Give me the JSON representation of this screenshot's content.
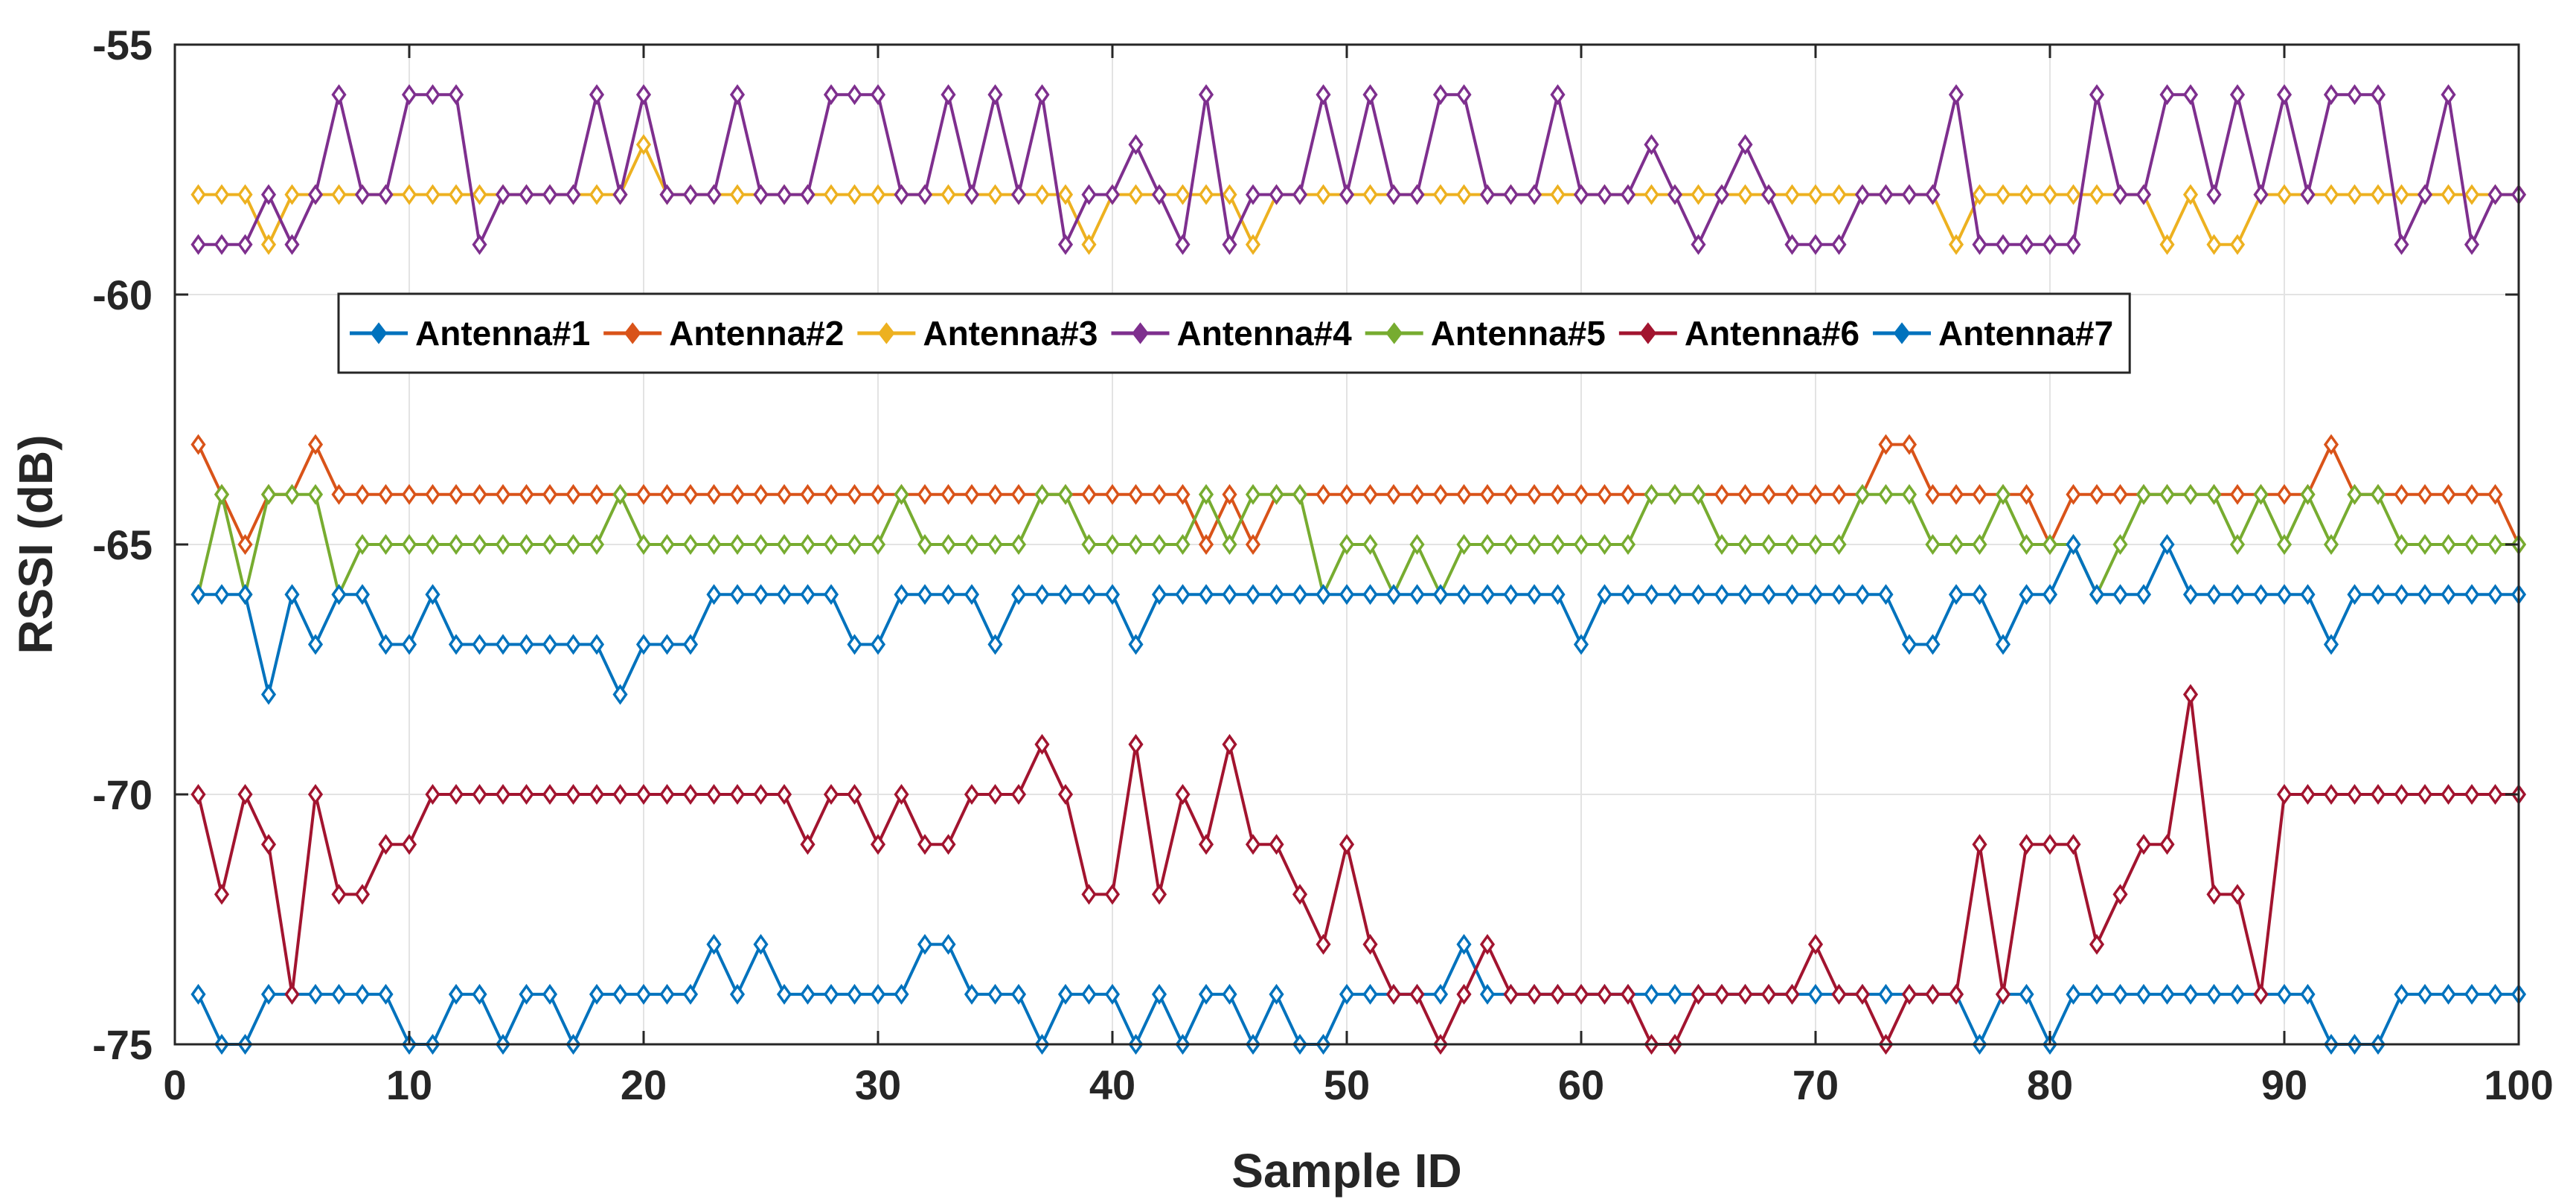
{
  "chart_data": {
    "type": "line",
    "title": "",
    "xlabel": "Sample ID",
    "ylabel": "RSSI (dB)",
    "xlim": [
      0,
      100
    ],
    "ylim": [
      -75,
      -55
    ],
    "x_ticks": [
      0,
      10,
      20,
      30,
      40,
      50,
      60,
      70,
      80,
      90,
      100
    ],
    "y_ticks": [
      -55,
      -60,
      -65,
      -70,
      -75
    ],
    "x_tick_labels": [
      "0",
      "10",
      "20",
      "30",
      "40",
      "50",
      "60",
      "70",
      "80",
      "90",
      "100"
    ],
    "y_tick_labels": [
      "-55",
      "-60",
      "-65",
      "-70",
      "-75"
    ],
    "grid": true,
    "legend_position": "upper-center, single row",
    "marker": "diamond",
    "x": [
      1,
      2,
      3,
      4,
      5,
      6,
      7,
      8,
      9,
      10,
      11,
      12,
      13,
      14,
      15,
      16,
      17,
      18,
      19,
      20,
      21,
      22,
      23,
      24,
      25,
      26,
      27,
      28,
      29,
      30,
      31,
      32,
      33,
      34,
      35,
      36,
      37,
      38,
      39,
      40,
      41,
      42,
      43,
      44,
      45,
      46,
      47,
      48,
      49,
      50,
      51,
      52,
      53,
      54,
      55,
      56,
      57,
      58,
      59,
      60,
      61,
      62,
      63,
      64,
      65,
      66,
      67,
      68,
      69,
      70,
      71,
      72,
      73,
      74,
      75,
      76,
      77,
      78,
      79,
      80,
      81,
      82,
      83,
      84,
      85,
      86,
      87,
      88,
      89,
      90,
      91,
      92,
      93,
      94,
      95,
      96,
      97,
      98,
      99,
      100
    ],
    "series": [
      {
        "name": "Antenna#1",
        "color": "#0072BD",
        "values": [
          -74,
          -75,
          -75,
          -74,
          -74,
          -74,
          -74,
          -74,
          -74,
          -75,
          -75,
          -74,
          -74,
          -75,
          -74,
          -74,
          -75,
          -74,
          -74,
          -74,
          -74,
          -74,
          -73,
          -74,
          -73,
          -74,
          -74,
          -74,
          -74,
          -74,
          -74,
          -73,
          -73,
          -74,
          -74,
          -74,
          -75,
          -74,
          -74,
          -74,
          -75,
          -74,
          -75,
          -74,
          -74,
          -75,
          -74,
          -75,
          -75,
          -74,
          -74,
          -74,
          -74,
          -74,
          -73,
          -74,
          -74,
          -74,
          -74,
          -74,
          -74,
          -74,
          -74,
          -74,
          -74,
          -74,
          -74,
          -74,
          -74,
          -74,
          -74,
          -74,
          -74,
          -74,
          -74,
          -74,
          -75,
          -74,
          -74,
          -75,
          -74,
          -74,
          -74,
          -74,
          -74,
          -74,
          -74,
          -74,
          -74,
          -74,
          -74,
          -75,
          -75,
          -75,
          -74,
          -74,
          -74,
          -74,
          -74,
          -74
        ]
      },
      {
        "name": "Antenna#2",
        "color": "#D95319",
        "values": [
          -63,
          -64,
          -65,
          -64,
          -64,
          -63,
          -64,
          -64,
          -64,
          -64,
          -64,
          -64,
          -64,
          -64,
          -64,
          -64,
          -64,
          -64,
          -64,
          -64,
          -64,
          -64,
          -64,
          -64,
          -64,
          -64,
          -64,
          -64,
          -64,
          -64,
          -64,
          -64,
          -64,
          -64,
          -64,
          -64,
          -64,
          -64,
          -64,
          -64,
          -64,
          -64,
          -64,
          -65,
          -64,
          -65,
          -64,
          -64,
          -64,
          -64,
          -64,
          -64,
          -64,
          -64,
          -64,
          -64,
          -64,
          -64,
          -64,
          -64,
          -64,
          -64,
          -64,
          -64,
          -64,
          -64,
          -64,
          -64,
          -64,
          -64,
          -64,
          -64,
          -63,
          -63,
          -64,
          -64,
          -64,
          -64,
          -64,
          -65,
          -64,
          -64,
          -64,
          -64,
          -64,
          -64,
          -64,
          -64,
          -64,
          -64,
          -64,
          -63,
          -64,
          -64,
          -64,
          -64,
          -64,
          -64,
          -64,
          -65
        ]
      },
      {
        "name": "Antenna#3",
        "color": "#EDB120",
        "values": [
          -58,
          -58,
          -58,
          -59,
          -58,
          -58,
          -58,
          -58,
          -58,
          -58,
          -58,
          -58,
          -58,
          -58,
          -58,
          -58,
          -58,
          -58,
          -58,
          -57,
          -58,
          -58,
          -58,
          -58,
          -58,
          -58,
          -58,
          -58,
          -58,
          -58,
          -58,
          -58,
          -58,
          -58,
          -58,
          -58,
          -58,
          -58,
          -59,
          -58,
          -58,
          -58,
          -58,
          -58,
          -58,
          -59,
          -58,
          -58,
          -58,
          -58,
          -58,
          -58,
          -58,
          -58,
          -58,
          -58,
          -58,
          -58,
          -58,
          -58,
          -58,
          -58,
          -58,
          -58,
          -58,
          -58,
          -58,
          -58,
          -58,
          -58,
          -58,
          -58,
          -58,
          -58,
          -58,
          -59,
          -58,
          -58,
          -58,
          -58,
          -58,
          -58,
          -58,
          -58,
          -59,
          -58,
          -59,
          -59,
          -58,
          -58,
          -58,
          -58,
          -58,
          -58,
          -58,
          -58,
          -58,
          -58,
          -58,
          -58
        ]
      },
      {
        "name": "Antenna#4",
        "color": "#7E2F8E",
        "values": [
          -59,
          -59,
          -59,
          -58,
          -59,
          -58,
          -56,
          -58,
          -58,
          -56,
          -56,
          -56,
          -59,
          -58,
          -58,
          -58,
          -58,
          -56,
          -58,
          -56,
          -58,
          -58,
          -58,
          -56,
          -58,
          -58,
          -58,
          -56,
          -56,
          -56,
          -58,
          -58,
          -56,
          -58,
          -56,
          -58,
          -56,
          -59,
          -58,
          -58,
          -57,
          -58,
          -59,
          -56,
          -59,
          -58,
          -58,
          -58,
          -56,
          -58,
          -56,
          -58,
          -58,
          -56,
          -56,
          -58,
          -58,
          -58,
          -56,
          -58,
          -58,
          -58,
          -57,
          -58,
          -59,
          -58,
          -57,
          -58,
          -59,
          -59,
          -59,
          -58,
          -58,
          -58,
          -58,
          -56,
          -59,
          -59,
          -59,
          -59,
          -59,
          -56,
          -58,
          -58,
          -56,
          -56,
          -58,
          -56,
          -58,
          -56,
          -58,
          -56,
          -56,
          -56,
          -59,
          -58,
          -56,
          -59,
          -58,
          -58
        ]
      },
      {
        "name": "Antenna#5",
        "color": "#77AC30",
        "values": [
          -66,
          -64,
          -66,
          -64,
          -64,
          -64,
          -66,
          -65,
          -65,
          -65,
          -65,
          -65,
          -65,
          -65,
          -65,
          -65,
          -65,
          -65,
          -64,
          -65,
          -65,
          -65,
          -65,
          -65,
          -65,
          -65,
          -65,
          -65,
          -65,
          -65,
          -64,
          -65,
          -65,
          -65,
          -65,
          -65,
          -64,
          -64,
          -65,
          -65,
          -65,
          -65,
          -65,
          -64,
          -65,
          -64,
          -64,
          -64,
          -66,
          -65,
          -65,
          -66,
          -65,
          -66,
          -65,
          -65,
          -65,
          -65,
          -65,
          -65,
          -65,
          -65,
          -64,
          -64,
          -64,
          -65,
          -65,
          -65,
          -65,
          -65,
          -65,
          -64,
          -64,
          -64,
          -65,
          -65,
          -65,
          -64,
          -65,
          -65,
          -65,
          -66,
          -65,
          -64,
          -64,
          -64,
          -64,
          -65,
          -64,
          -65,
          -64,
          -65,
          -64,
          -64,
          -65,
          -65,
          -65,
          -65,
          -65,
          -65
        ]
      },
      {
        "name": "Antenna#6",
        "color": "#A2142F",
        "values": [
          -70,
          -72,
          -70,
          -71,
          -74,
          -70,
          -72,
          -72,
          -71,
          -71,
          -70,
          -70,
          -70,
          -70,
          -70,
          -70,
          -70,
          -70,
          -70,
          -70,
          -70,
          -70,
          -70,
          -70,
          -70,
          -70,
          -71,
          -70,
          -70,
          -71,
          -70,
          -71,
          -71,
          -70,
          -70,
          -70,
          -69,
          -70,
          -72,
          -72,
          -69,
          -72,
          -70,
          -71,
          -69,
          -71,
          -71,
          -72,
          -73,
          -71,
          -73,
          -74,
          -74,
          -75,
          -74,
          -73,
          -74,
          -74,
          -74,
          -74,
          -74,
          -74,
          -75,
          -75,
          -74,
          -74,
          -74,
          -74,
          -74,
          -73,
          -74,
          -74,
          -75,
          -74,
          -74,
          -74,
          -71,
          -74,
          -71,
          -71,
          -71,
          -73,
          -72,
          -71,
          -71,
          -68,
          -72,
          -72,
          -74,
          -70,
          -70,
          -70,
          -70,
          -70,
          -70,
          -70,
          -70,
          -70,
          -70,
          -70
        ]
      },
      {
        "name": "Antenna#7",
        "color": "#0072BD",
        "values": [
          -66,
          -66,
          -66,
          -68,
          -66,
          -67,
          -66,
          -66,
          -67,
          -67,
          -66,
          -67,
          -67,
          -67,
          -67,
          -67,
          -67,
          -67,
          -68,
          -67,
          -67,
          -67,
          -66,
          -66,
          -66,
          -66,
          -66,
          -66,
          -67,
          -67,
          -66,
          -66,
          -66,
          -66,
          -67,
          -66,
          -66,
          -66,
          -66,
          -66,
          -67,
          -66,
          -66,
          -66,
          -66,
          -66,
          -66,
          -66,
          -66,
          -66,
          -66,
          -66,
          -66,
          -66,
          -66,
          -66,
          -66,
          -66,
          -66,
          -67,
          -66,
          -66,
          -66,
          -66,
          -66,
          -66,
          -66,
          -66,
          -66,
          -66,
          -66,
          -66,
          -66,
          -67,
          -67,
          -66,
          -66,
          -67,
          -66,
          -66,
          -65,
          -66,
          -66,
          -66,
          -65,
          -66,
          -66,
          -66,
          -66,
          -66,
          -66,
          -67,
          -66,
          -66,
          -66,
          -66,
          -66,
          -66,
          -66,
          -66
        ]
      }
    ]
  }
}
